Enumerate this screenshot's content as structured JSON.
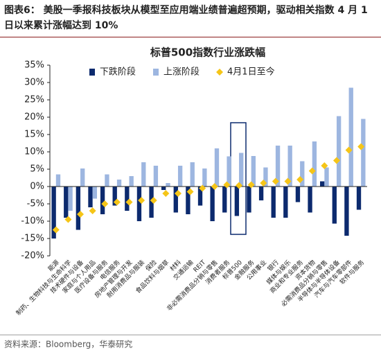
{
  "header": {
    "title": "图表6： 美股一季报科技板块从模型至应用端业绩普遍超预期，驱动相关指数 4 月 1 日以来累计涨幅达到 10%"
  },
  "source": "资料来源：Bloomberg，华泰研究",
  "chart_data": {
    "type": "bar",
    "title": "标普500指数行业涨跌幅",
    "categories": [
      "能源",
      "制药、生物科技与生命科学",
      "技术硬件与设备",
      "家庭与个人用品",
      "医疗设备与服务",
      "电信服务",
      "房地产管理与开发",
      "耐用消费品与服装",
      "保险",
      "食品饮料与烟草",
      "材料",
      "交通运输",
      "REIT",
      "非必需消费品分销与零售",
      "消费者服务",
      "标普500",
      "金融服务",
      "公用事业",
      "银行",
      "媒体与娱乐",
      "商业和专业服务",
      "资本货物",
      "必需消费品分销与零售",
      "半导体与半导体设备",
      "汽车与汽车零部件",
      "软件与服务"
    ],
    "series": [
      {
        "name": "下跌阶段",
        "color": "#0c2a6e",
        "values": [
          -15,
          -9,
          -12.5,
          -6,
          -8,
          -5.5,
          -7,
          -10,
          -9,
          -1,
          -7.5,
          -8,
          -5.5,
          -10,
          -7.5,
          -8.5,
          -7.5,
          -4,
          -9,
          -9,
          -4.5,
          -7.5,
          1.5,
          -10.7,
          -14.2,
          -6.7
        ]
      },
      {
        "name": "上涨阶段",
        "color": "#9db6e0",
        "values": [
          3.5,
          -7,
          5.2,
          -3.5,
          3.5,
          2,
          3,
          7,
          6,
          1,
          6,
          7,
          5.2,
          11,
          8.7,
          9.7,
          8.8,
          5.5,
          11.8,
          11.8,
          7.3,
          13,
          5.5,
          20.3,
          28.5,
          19.5
        ]
      },
      {
        "name": "4月1日至今",
        "color": "#f5c518",
        "type": "diamond",
        "values": [
          -12.5,
          -9.5,
          -8,
          -7,
          -5,
          -4.5,
          -4.5,
          -4,
          -4,
          -2,
          -2,
          -1.5,
          -0.5,
          0,
          0.5,
          0.3,
          0.5,
          1,
          1.5,
          1.5,
          2,
          4.5,
          6,
          7.5,
          10.5,
          11.5
        ]
      }
    ],
    "ylim": [
      -20,
      35
    ],
    "yticks": [
      {
        "value": -20,
        "label": "-20%"
      },
      {
        "value": -15,
        "label": "-15%"
      },
      {
        "value": -10,
        "label": "-10%"
      },
      {
        "value": -5,
        "label": "-5%"
      },
      {
        "value": 0,
        "label": "0%"
      },
      {
        "value": 5,
        "label": "5%"
      },
      {
        "value": 10,
        "label": "10%"
      },
      {
        "value": 15,
        "label": "15%"
      },
      {
        "value": 20,
        "label": "20%"
      },
      {
        "value": 25,
        "label": "25%"
      },
      {
        "value": 30,
        "label": "30%"
      },
      {
        "value": 35,
        "label": "35%"
      }
    ],
    "grid": false
  }
}
